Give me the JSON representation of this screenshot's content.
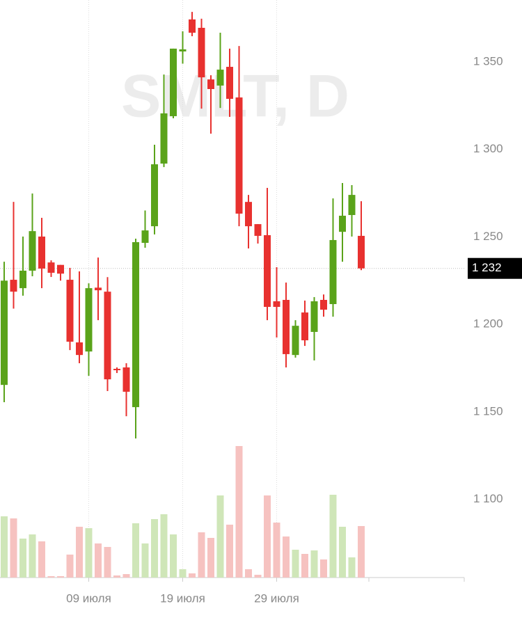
{
  "chart_data": {
    "type": "candlestick",
    "watermark": "SMLT, D",
    "categories": [
      null,
      null,
      null,
      null,
      null,
      null,
      null,
      null,
      null,
      "09 июля",
      null,
      null,
      null,
      null,
      null,
      null,
      null,
      null,
      null,
      "19 июля",
      null,
      null,
      null,
      null,
      null,
      null,
      null,
      null,
      null,
      "29 июля",
      null,
      null,
      null,
      null,
      null,
      null,
      null,
      null,
      null
    ],
    "open": [
      1165.4,
      1225.5,
      1220.7,
      1230.7,
      1250.2,
      1235.4,
      1234,
      1225.5,
      1189.7,
      1184.5,
      1221,
      1218.7,
      1174.6,
      1175.4,
      1152.7,
      1246.6,
      1256.1,
      1291.9,
      1319,
      1356,
      1374.3,
      1369.5,
      1340,
      1336.5,
      1347.2,
      1329.7,
      1270,
      1257.3,
      1251,
      1213.2,
      1214,
      1182.5,
      1206.8,
      1195.7,
      1214,
      1211.6,
      1252.9,
      1262.5,
      1250.6
    ],
    "high": [
      1235.8,
      1270,
      1250.2,
      1274.8,
      1260.9,
      1236.6,
      1234,
      1232.3,
      1230.3,
      1223.5,
      1238.2,
      1227,
      1175.4,
      1177.8,
      1249,
      1265.1,
      1302.7,
      1342.8,
      1357.6,
      1367.5,
      1378.6,
      1374.7,
      1342.4,
      1366.7,
      1357.6,
      1359.1,
      1274,
      1257.3,
      1278,
      1232.7,
      1223.9,
      1202.4,
      1213.6,
      1215.6,
      1217.1,
      1272,
      1280.8,
      1279.6,
      1270.4
    ],
    "low": [
      1155.5,
      1209,
      1216.4,
      1227.5,
      1220.7,
      1227.1,
      1225,
      1185.3,
      1177.8,
      1170.6,
      1202.4,
      1161.9,
      1172.2,
      1147.5,
      1134.8,
      1243.8,
      1251.4,
      1289.9,
      1317.8,
      1349,
      1364.7,
      1323.3,
      1309,
      1323.7,
      1318.6,
      1256.1,
      1243.4,
      1246.2,
      1202.4,
      1192.5,
      1175.4,
      1181,
      1187.7,
      1179.4,
      1204.4,
      1204.4,
      1235.8,
      1250.2,
      1231
    ],
    "close": [
      1225,
      1218.7,
      1230.7,
      1253.3,
      1231.9,
      1229.5,
      1229,
      1190.1,
      1182.5,
      1220.7,
      1219.5,
      1168.6,
      1173.8,
      1161.5,
      1247,
      1253.7,
      1291.5,
      1320.6,
      1357.6,
      1357.2,
      1366.7,
      1341.2,
      1334.5,
      1345.6,
      1328.9,
      1263.3,
      1256.1,
      1250.6,
      1210,
      1210,
      1183,
      1199.2,
      1190.9,
      1213.2,
      1208.4,
      1248.2,
      1262.1,
      1274,
      1232
    ],
    "volume": [
      88,
      85,
      56,
      62,
      52,
      2,
      2,
      33,
      73,
      71,
      49,
      44,
      3,
      5,
      78,
      49,
      84,
      91,
      62,
      12,
      6,
      65,
      57,
      118,
      76,
      189,
      12,
      4,
      118,
      79,
      59,
      40,
      34,
      39,
      26,
      119,
      73,
      29,
      74
    ],
    "up_color": "#5aa31a",
    "down_color": "#e8312f",
    "up_volume_color": "#cfe6b8",
    "down_volume_color": "#f6c2c0",
    "last_price": {
      "value": 1232,
      "label": "1 232"
    },
    "ylim": [
      1055.3,
      1385.4
    ],
    "yticks": [
      {
        "value": 1100,
        "label": "1 100"
      },
      {
        "value": 1150,
        "label": "1 150"
      },
      {
        "value": 1200,
        "label": "1 200"
      },
      {
        "value": 1250,
        "label": "1 250"
      },
      {
        "value": 1300,
        "label": "1 300"
      },
      {
        "value": 1350,
        "label": "1 350"
      }
    ]
  }
}
